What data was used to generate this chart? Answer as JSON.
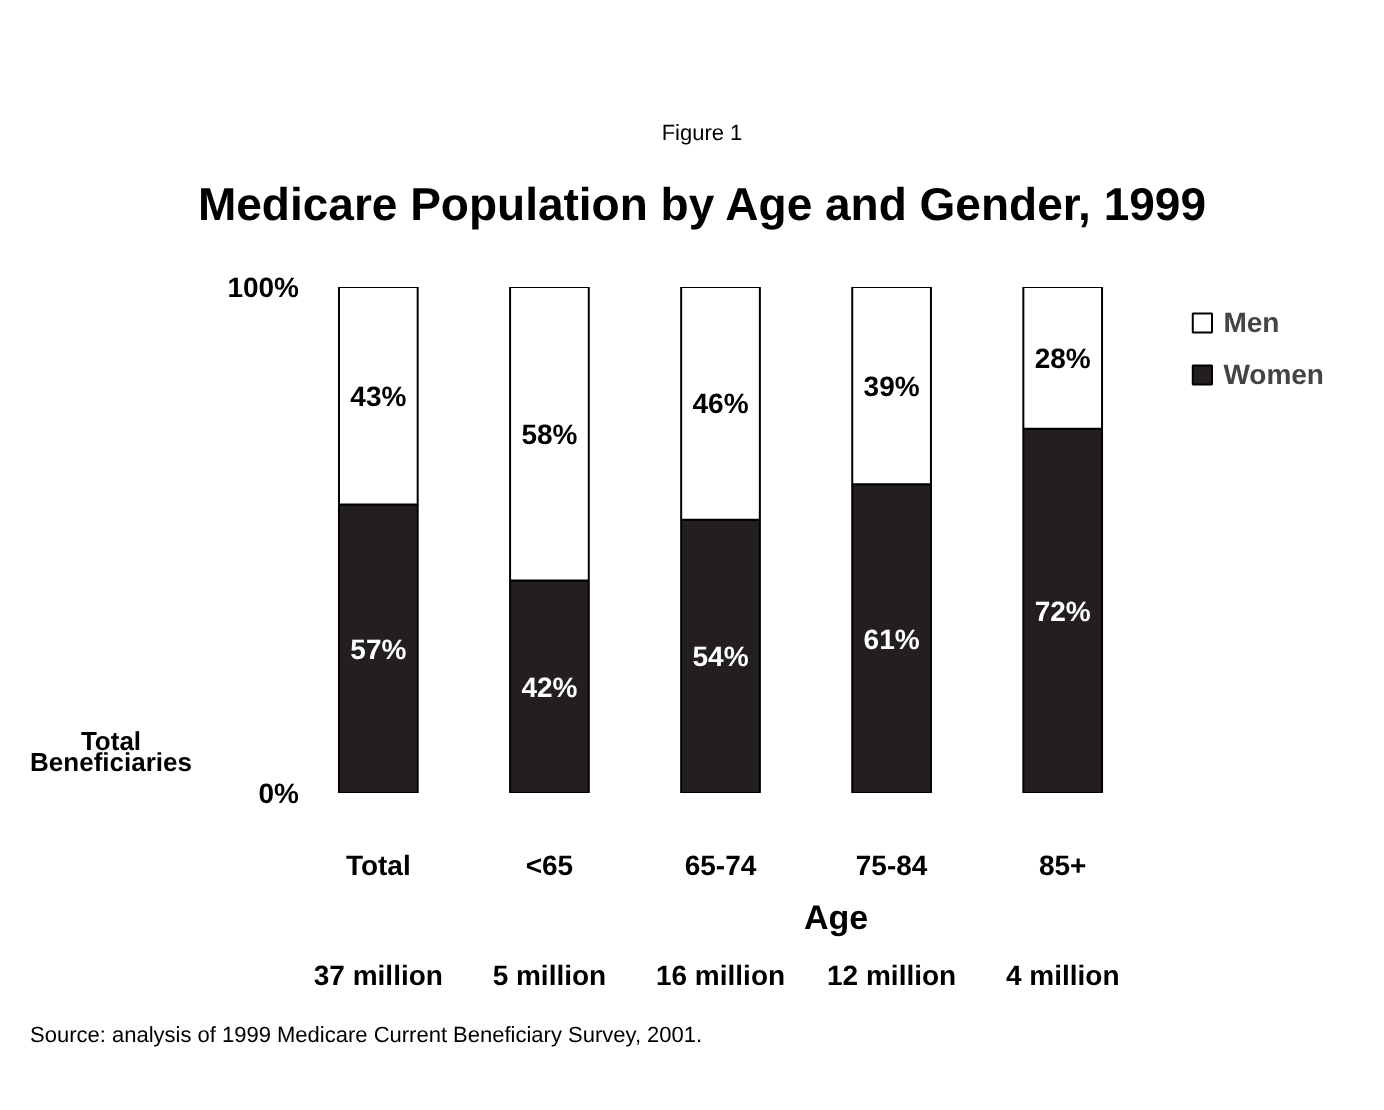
{
  "chart_data": {
    "type": "bar",
    "stacked": true,
    "subtitle": "Figure 1",
    "title": "Medicare Population by Age and Gender, 1999",
    "xlabel": "Age",
    "categories": [
      "Total",
      "<65",
      "65-74",
      "75-84",
      "85+"
    ],
    "series": [
      {
        "name": "Women",
        "color": "#231f20",
        "values": [
          57,
          42,
          54,
          61,
          72
        ],
        "value_labels": [
          "57%",
          "42%",
          "54%",
          "61%",
          "72%"
        ]
      },
      {
        "name": "Men",
        "color": "#ffffff",
        "values": [
          43,
          58,
          46,
          39,
          28
        ],
        "value_labels": [
          "43%",
          "58%",
          "46%",
          "39%",
          "28%"
        ]
      }
    ],
    "ylim": [
      0,
      100
    ],
    "yticks": [
      {
        "value": 0,
        "label": "0%"
      },
      {
        "value": 100,
        "label": "100%"
      }
    ],
    "legend": "top right",
    "annotations": [
      "Total Beneficiaries",
      "37 million",
      "5 million",
      "16 million",
      "12 million",
      "4 million",
      "Source: analysis of 1999 Medicare Current Beneficiary Survey, 2001."
    ]
  }
}
